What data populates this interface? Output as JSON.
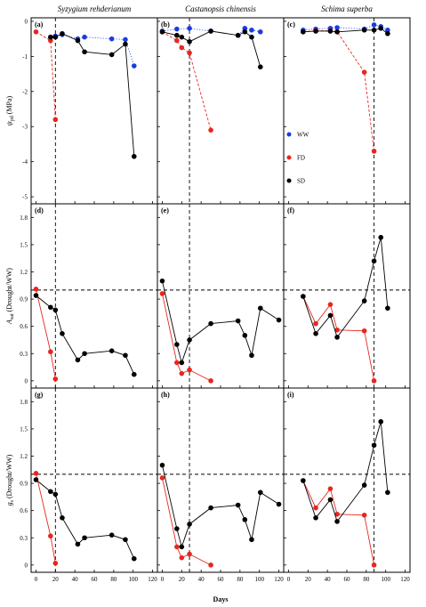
{
  "figure": {
    "species": [
      "Syzygium rehderianum",
      "Castanopsis chinensis",
      "Schima superba"
    ],
    "x_axis_label": "Days",
    "row_ylabels": [
      {
        "main": "ψ",
        "sub": "pd",
        "rest": " (MPa)"
      },
      {
        "main": "A",
        "sub": "sat",
        "rest": " (Drought/WW)"
      },
      {
        "main": "g",
        "sub": "s",
        "rest": " (Drought/WW)"
      }
    ],
    "legend": [
      {
        "label": "WW",
        "color": "#1a3de0"
      },
      {
        "label": "FD",
        "color": "#e8261e"
      },
      {
        "label": "SD",
        "color": "#000000"
      }
    ],
    "colors": {
      "WW": "#1a3de0",
      "FD": "#e8261e",
      "SD": "#000000"
    }
  },
  "chart_data": [
    {
      "panel": "(a)",
      "type": "scatter",
      "row": 0,
      "col": 0,
      "xlim": [
        -5,
        125
      ],
      "ylim": [
        -5.2,
        0.1
      ],
      "xticks": [
        0,
        20,
        40,
        60,
        80,
        100,
        120
      ],
      "yticks": [
        -5,
        -4,
        -3,
        -2,
        -1,
        0
      ],
      "vline": 20,
      "series": [
        {
          "name": "WW",
          "line": "dotted",
          "x": [
            15,
            20,
            27,
            43,
            50,
            78,
            92,
            101
          ],
          "y": [
            -0.45,
            -0.42,
            -0.38,
            -0.5,
            -0.45,
            -0.5,
            -0.52,
            -1.27
          ]
        },
        {
          "name": "FD",
          "line": "dashed",
          "x": [
            0,
            15,
            20
          ],
          "y": [
            -0.3,
            -0.55,
            -2.8
          ]
        },
        {
          "name": "SD",
          "line": "solid",
          "x": [
            15,
            20,
            27,
            43,
            50,
            78,
            92,
            101
          ],
          "y": [
            -0.45,
            -0.45,
            -0.35,
            -0.55,
            -0.87,
            -0.95,
            -0.65,
            -3.85
          ]
        }
      ]
    },
    {
      "panel": "(b)",
      "type": "scatter",
      "row": 0,
      "col": 1,
      "xlim": [
        -5,
        125
      ],
      "ylim": [
        -5.2,
        0.1
      ],
      "xticks": [
        0,
        20,
        40,
        60,
        80,
        100,
        120
      ],
      "yticks": [
        -5,
        -4,
        -3,
        -2,
        -1,
        0
      ],
      "vline": 28,
      "series": [
        {
          "name": "WW",
          "line": "dotted",
          "x": [
            0,
            15,
            28,
            50,
            78,
            85,
            92,
            101
          ],
          "y": [
            -0.28,
            -0.22,
            -0.2,
            -0.28,
            -0.4,
            -0.2,
            -0.25,
            -0.3
          ]
        },
        {
          "name": "FD",
          "line": "dashed",
          "x": [
            0,
            15,
            20,
            28,
            50
          ],
          "y": [
            -0.3,
            -0.55,
            -0.75,
            -0.9,
            -3.1
          ]
        },
        {
          "name": "SD",
          "line": "solid",
          "x": [
            0,
            15,
            20,
            28,
            50,
            78,
            85,
            92,
            101
          ],
          "y": [
            -0.3,
            -0.4,
            -0.45,
            -0.58,
            -0.28,
            -0.4,
            -0.3,
            -0.45,
            -1.3
          ]
        }
      ]
    },
    {
      "panel": "(c)",
      "type": "scatter",
      "row": 0,
      "col": 2,
      "xlim": [
        -5,
        125
      ],
      "ylim": [
        -5.2,
        0.1
      ],
      "xticks": [
        0,
        20,
        40,
        60,
        80,
        100,
        120
      ],
      "yticks": [
        -5,
        -4,
        -3,
        -2,
        -1,
        0
      ],
      "vline": 88,
      "series": [
        {
          "name": "WW",
          "line": "dotted",
          "x": [
            15,
            28,
            43,
            50,
            78,
            88,
            95,
            102
          ],
          "y": [
            -0.25,
            -0.22,
            -0.2,
            -0.18,
            -0.22,
            -0.1,
            -0.15,
            -0.25
          ]
        },
        {
          "name": "FD",
          "line": "dashed",
          "x": [
            15,
            28,
            43,
            50,
            78,
            88
          ],
          "y": [
            -0.3,
            -0.27,
            -0.27,
            -0.3,
            -1.45,
            -3.7
          ]
        },
        {
          "name": "SD",
          "line": "solid",
          "x": [
            15,
            28,
            43,
            50,
            78,
            88,
            95,
            102
          ],
          "y": [
            -0.3,
            -0.28,
            -0.28,
            -0.3,
            -0.25,
            -0.25,
            -0.2,
            -0.35
          ]
        }
      ]
    },
    {
      "panel": "(d)",
      "type": "line",
      "row": 1,
      "col": 0,
      "xlim": [
        -5,
        125
      ],
      "ylim": [
        -0.08,
        1.95
      ],
      "xticks": [
        0,
        20,
        40,
        60,
        80,
        100,
        120
      ],
      "yticks": [
        0.0,
        0.3,
        0.6,
        0.9,
        1.2,
        1.5,
        1.8
      ],
      "vline": 20,
      "hline": 1.0,
      "series": [
        {
          "name": "FD",
          "x": [
            0,
            15,
            20
          ],
          "y": [
            1.01,
            0.32,
            0.02
          ]
        },
        {
          "name": "SD",
          "x": [
            0,
            15,
            20,
            27,
            43,
            50,
            78,
            92,
            101
          ],
          "y": [
            0.94,
            0.81,
            0.78,
            0.52,
            0.23,
            0.3,
            0.33,
            0.28,
            0.07
          ]
        }
      ]
    },
    {
      "panel": "(e)",
      "type": "line",
      "row": 1,
      "col": 1,
      "xlim": [
        -5,
        125
      ],
      "ylim": [
        -0.08,
        1.95
      ],
      "xticks": [
        0,
        20,
        40,
        60,
        80,
        100,
        120
      ],
      "yticks": [
        0.0,
        0.3,
        0.6,
        0.9,
        1.2,
        1.5,
        1.8
      ],
      "vline": 28,
      "hline": 1.0,
      "series": [
        {
          "name": "FD",
          "x": [
            0,
            15,
            20,
            28,
            50
          ],
          "y": [
            0.96,
            0.2,
            0.08,
            0.12,
            0.0
          ]
        },
        {
          "name": "SD",
          "x": [
            0,
            15,
            20,
            28,
            50,
            78,
            85,
            92,
            101,
            120
          ],
          "y": [
            1.1,
            0.4,
            0.2,
            0.45,
            0.63,
            0.66,
            0.5,
            0.28,
            0.8,
            0.67
          ]
        }
      ]
    },
    {
      "panel": "(f)",
      "type": "line",
      "row": 1,
      "col": 2,
      "xlim": [
        -5,
        125
      ],
      "ylim": [
        -0.08,
        1.95
      ],
      "xticks": [
        0,
        20,
        40,
        60,
        80,
        100,
        120
      ],
      "yticks": [
        0.0,
        0.3,
        0.6,
        0.9,
        1.2,
        1.5,
        1.8
      ],
      "vline": 88,
      "hline": 1.0,
      "series": [
        {
          "name": "FD",
          "x": [
            15,
            28,
            43,
            50,
            78,
            88
          ],
          "y": [
            0.93,
            0.63,
            0.84,
            0.56,
            0.55,
            0.0
          ]
        },
        {
          "name": "SD",
          "x": [
            15,
            28,
            43,
            50,
            78,
            88,
            95,
            102
          ],
          "y": [
            0.93,
            0.52,
            0.72,
            0.48,
            0.88,
            1.32,
            1.58,
            0.8
          ]
        }
      ]
    },
    {
      "panel": "(g)",
      "type": "line",
      "row": 2,
      "col": 0,
      "xlim": [
        -5,
        125
      ],
      "ylim": [
        -0.08,
        1.95
      ],
      "xticks": [
        0,
        20,
        40,
        60,
        80,
        100,
        120
      ],
      "yticks": [
        0.0,
        0.3,
        0.6,
        0.9,
        1.2,
        1.5,
        1.8
      ],
      "vline": 20,
      "hline": 1.0,
      "series": [
        {
          "name": "FD",
          "x": [
            0,
            15,
            20
          ],
          "y": [
            1.01,
            0.32,
            0.02
          ]
        },
        {
          "name": "SD",
          "x": [
            0,
            15,
            20,
            27,
            43,
            50,
            78,
            92,
            101
          ],
          "y": [
            0.94,
            0.81,
            0.78,
            0.52,
            0.23,
            0.3,
            0.33,
            0.28,
            0.07
          ]
        }
      ]
    },
    {
      "panel": "(h)",
      "type": "line",
      "row": 2,
      "col": 1,
      "xlim": [
        -5,
        125
      ],
      "ylim": [
        -0.08,
        1.95
      ],
      "xticks": [
        0,
        20,
        40,
        60,
        80,
        100,
        120
      ],
      "yticks": [
        0.0,
        0.3,
        0.6,
        0.9,
        1.2,
        1.5,
        1.8
      ],
      "vline": 28,
      "hline": 1.0,
      "series": [
        {
          "name": "FD",
          "x": [
            0,
            15,
            20,
            28,
            50
          ],
          "y": [
            0.96,
            0.2,
            0.08,
            0.12,
            0.0
          ]
        },
        {
          "name": "SD",
          "x": [
            0,
            15,
            20,
            28,
            50,
            78,
            85,
            92,
            101,
            120
          ],
          "y": [
            1.1,
            0.4,
            0.2,
            0.45,
            0.63,
            0.66,
            0.5,
            0.28,
            0.8,
            0.67
          ]
        }
      ]
    },
    {
      "panel": "(i)",
      "type": "line",
      "row": 2,
      "col": 2,
      "xlim": [
        -5,
        125
      ],
      "ylim": [
        -0.08,
        1.95
      ],
      "xticks": [
        0,
        20,
        40,
        60,
        80,
        100,
        120
      ],
      "yticks": [
        0.0,
        0.3,
        0.6,
        0.9,
        1.2,
        1.5,
        1.8
      ],
      "vline": 88,
      "hline": 1.0,
      "series": [
        {
          "name": "FD",
          "x": [
            15,
            28,
            43,
            50,
            78,
            88
          ],
          "y": [
            0.93,
            0.63,
            0.84,
            0.56,
            0.55,
            0.0
          ]
        },
        {
          "name": "SD",
          "x": [
            15,
            28,
            43,
            50,
            78,
            88,
            95,
            102
          ],
          "y": [
            0.93,
            0.52,
            0.72,
            0.48,
            0.88,
            1.32,
            1.58,
            0.8
          ]
        }
      ]
    }
  ]
}
